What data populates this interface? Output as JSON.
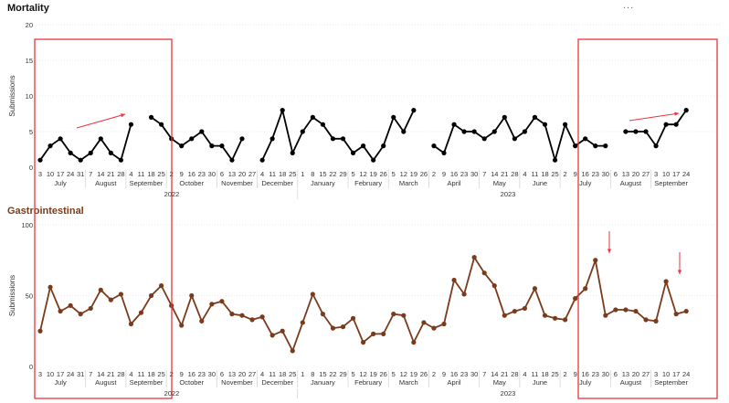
{
  "more_icon": "...",
  "chart_data": [
    {
      "type": "line",
      "title": "Mortality",
      "ylabel": "Submissions",
      "ylim": [
        0,
        20
      ],
      "yticks": [
        0,
        5,
        10,
        15,
        20
      ],
      "color": "#000000",
      "x_ticks": [
        "3",
        "10",
        "17",
        "24",
        "31",
        "7",
        "14",
        "21",
        "28",
        "4",
        "11",
        "18",
        "25",
        "2",
        "9",
        "16",
        "23",
        "30",
        "6",
        "13",
        "20",
        "27",
        "4",
        "11",
        "18",
        "25",
        "1",
        "8",
        "15",
        "22",
        "29",
        "5",
        "12",
        "19",
        "26",
        "5",
        "12",
        "19",
        "26",
        "2",
        "9",
        "16",
        "23",
        "30",
        "7",
        "14",
        "21",
        "28",
        "4",
        "11",
        "18",
        "25",
        "2",
        "9",
        "16",
        "23",
        "30",
        "6",
        "13",
        "20",
        "27",
        "3",
        "10",
        "17",
        "24"
      ],
      "months": [
        "July",
        "August",
        "September",
        "October",
        "November",
        "December",
        "January",
        "February",
        "March",
        "April",
        "May",
        "June",
        "July",
        "August",
        "September"
      ],
      "years": [
        "2022",
        "2023"
      ],
      "values": [
        1,
        3,
        4,
        2,
        1,
        2,
        4,
        2,
        1,
        6,
        null,
        7,
        6,
        4,
        3,
        4,
        5,
        3,
        3,
        1,
        4,
        null,
        1,
        4,
        8,
        2,
        5,
        7,
        6,
        4,
        4,
        2,
        3,
        1,
        3,
        7,
        5,
        8,
        null,
        3,
        2,
        6,
        5,
        5,
        4,
        5,
        7,
        4,
        5,
        7,
        6,
        1,
        6,
        3,
        4,
        3,
        3,
        null,
        5,
        5,
        5,
        3,
        6,
        6,
        8
      ],
      "highlights": [
        "July–September 2022",
        "July–September 2023"
      ],
      "annotations": [
        "red arrow rising toward September 2022",
        "red arrow rising toward September 2023"
      ]
    },
    {
      "type": "line",
      "title": "Gastrointestinal",
      "ylabel": "Submissions",
      "ylim": [
        0,
        100
      ],
      "yticks": [
        0,
        50,
        100
      ],
      "color": "#7a3b1c",
      "x_ticks": [
        "3",
        "10",
        "17",
        "24",
        "31",
        "7",
        "14",
        "21",
        "28",
        "4",
        "11",
        "18",
        "25",
        "2",
        "9",
        "16",
        "23",
        "30",
        "6",
        "13",
        "20",
        "27",
        "4",
        "11",
        "18",
        "25",
        "1",
        "8",
        "15",
        "22",
        "29",
        "5",
        "12",
        "19",
        "26",
        "5",
        "12",
        "19",
        "26",
        "2",
        "9",
        "16",
        "23",
        "30",
        "7",
        "14",
        "21",
        "28",
        "4",
        "11",
        "18",
        "25",
        "2",
        "9",
        "16",
        "23",
        "30",
        "6",
        "13",
        "20",
        "27",
        "3",
        "10",
        "17",
        "24"
      ],
      "months": [
        "July",
        "August",
        "September",
        "October",
        "November",
        "December",
        "January",
        "February",
        "March",
        "April",
        "May",
        "June",
        "July",
        "August",
        "September"
      ],
      "years": [
        "2022",
        "2023"
      ],
      "values": [
        25,
        56,
        39,
        43,
        37,
        41,
        54,
        47,
        51,
        30,
        38,
        50,
        57,
        43,
        29,
        50,
        32,
        44,
        46,
        37,
        36,
        33,
        35,
        22,
        25,
        11,
        31,
        51,
        37,
        27,
        28,
        34,
        17,
        23,
        23,
        37,
        36,
        17,
        31,
        27,
        30,
        61,
        51,
        77,
        66,
        57,
        36,
        39,
        41,
        55,
        36,
        34,
        33,
        48,
        55,
        75,
        36,
        40,
        40,
        39,
        33,
        32,
        60,
        37,
        39
      ],
      "highlights": [
        "July–September 2022",
        "July–September 2023"
      ],
      "annotations": [
        "red arrow pointing down at July 2023 peak",
        "red arrow pointing down at September 2023 peak"
      ]
    }
  ]
}
